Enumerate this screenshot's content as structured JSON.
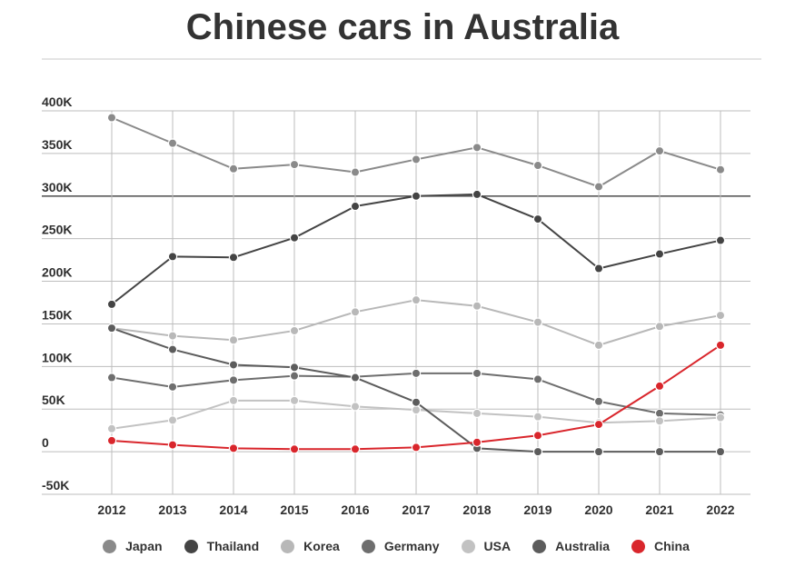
{
  "title": "Chinese cars in Australia",
  "chart_data": {
    "type": "line",
    "title": "Chinese cars in Australia",
    "xlabel": "",
    "ylabel": "",
    "x": [
      "2012",
      "2013",
      "2014",
      "2015",
      "2016",
      "2017",
      "2018",
      "2019",
      "2020",
      "2021",
      "2022"
    ],
    "ylim": [
      -50000,
      400000
    ],
    "yticks": [
      400000,
      350000,
      300000,
      250000,
      200000,
      150000,
      100000,
      50000,
      0,
      -50000
    ],
    "ytick_labels": [
      "400K",
      "350K",
      "300K",
      "250K",
      "200K",
      "150K",
      "100K",
      "50K",
      "0",
      "-50K"
    ],
    "grid": true,
    "legend_position": "bottom",
    "series": [
      {
        "name": "Japan",
        "color": "#8a8a8a",
        "values": [
          392000,
          362000,
          332000,
          337000,
          328000,
          343000,
          357000,
          336000,
          311000,
          353000,
          331000
        ]
      },
      {
        "name": "Thailand",
        "color": "#444444",
        "values": [
          173000,
          229000,
          228000,
          251000,
          288000,
          300000,
          302000,
          273000,
          215000,
          232000,
          248000
        ]
      },
      {
        "name": "Korea",
        "color": "#b8b8b8",
        "values": [
          145000,
          136000,
          131000,
          142000,
          164000,
          178000,
          171000,
          152000,
          125000,
          147000,
          160000
        ]
      },
      {
        "name": "Germany",
        "color": "#6e6e6e",
        "values": [
          87000,
          76000,
          84000,
          89000,
          88000,
          92000,
          92000,
          85000,
          59000,
          45000,
          43000
        ]
      },
      {
        "name": "USA",
        "color": "#c2c2c2",
        "values": [
          27000,
          37000,
          60000,
          60000,
          53000,
          49000,
          45000,
          41000,
          34000,
          36000,
          40000
        ]
      },
      {
        "name": "Australia",
        "color": "#5c5c5c",
        "values": [
          145000,
          120000,
          102000,
          99000,
          87000,
          58000,
          4000,
          0,
          0,
          0,
          0
        ]
      },
      {
        "name": "China",
        "color": "#d9262c",
        "values": [
          13000,
          8000,
          4000,
          3000,
          3000,
          5000,
          11000,
          19000,
          32000,
          77000,
          125000
        ]
      }
    ]
  }
}
